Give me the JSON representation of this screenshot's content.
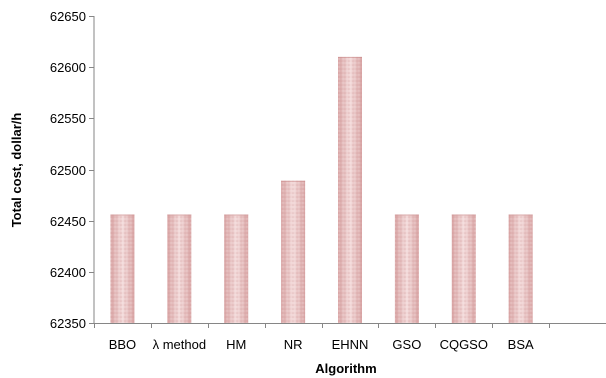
{
  "chart_data": {
    "type": "bar",
    "title": "",
    "xlabel": "Algorithm",
    "ylabel": "Total cost, dollar/h",
    "categories": [
      "BBO",
      "λ method",
      "HM",
      "NR",
      "EHNN",
      "GSO",
      "CQGSO",
      "BSA"
    ],
    "values": [
      62456,
      62456,
      62456,
      62489,
      62610,
      62456,
      62456,
      62456
    ],
    "ylim": [
      62350,
      62650
    ],
    "yticks": [
      62350,
      62400,
      62450,
      62500,
      62550,
      62600,
      62650
    ],
    "ytick_labels": [
      "62350",
      "62400",
      "62450",
      "62500",
      "62550",
      "62600",
      "62650"
    ],
    "slots": 9,
    "grid": false,
    "legend": "none",
    "colors": {
      "bar_light": "#f2dcdc",
      "bar_mid": "#e3b0b0",
      "bar_dark": "#c98a8a",
      "axis": "#868686"
    }
  }
}
